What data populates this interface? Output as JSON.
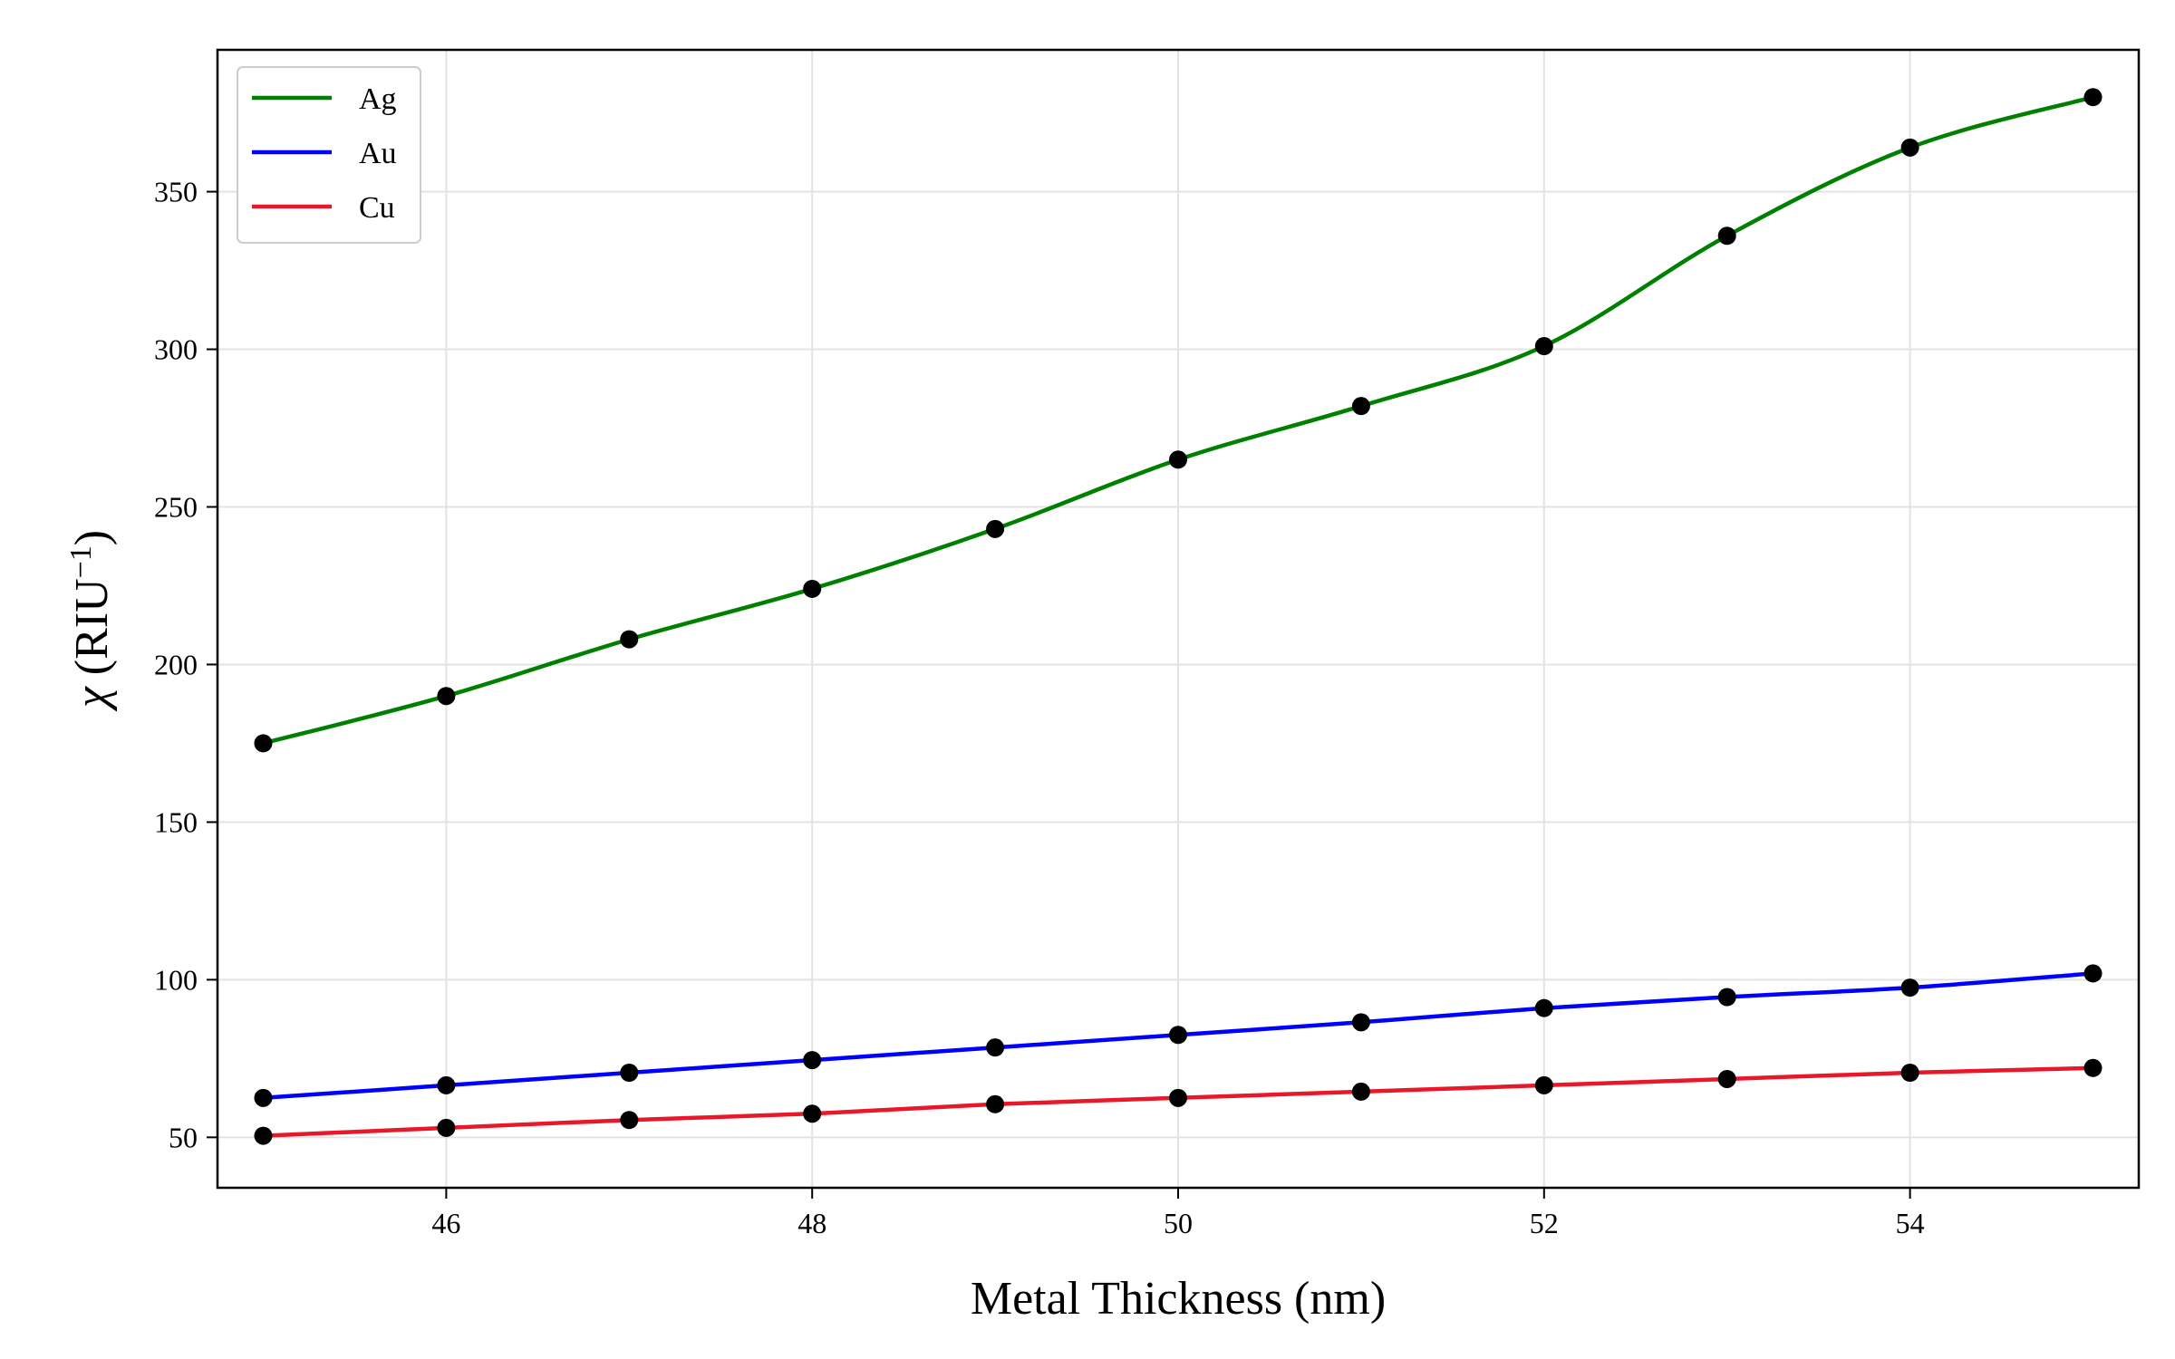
{
  "chart_data": {
    "type": "line",
    "xlabel": "Metal Thickness (nm)",
    "ylabel": {
      "symbol": "χ",
      "unit_prefix": " (RIU",
      "unit_sup": "−1",
      "unit_suffix": ")"
    },
    "xlim": [
      44.75,
      55.25
    ],
    "ylim": [
      34,
      395
    ],
    "x_ticks": [
      46,
      48,
      50,
      52,
      54
    ],
    "y_ticks": [
      50,
      100,
      150,
      200,
      250,
      300,
      350
    ],
    "grid": true,
    "legend_position": "top-left",
    "marker_color": "#000000",
    "x": [
      45,
      46,
      47,
      48,
      49,
      50,
      51,
      52,
      53,
      54,
      55
    ],
    "series": [
      {
        "name": "Ag",
        "color": "#008000",
        "values": [
          175,
          190,
          208,
          224,
          243,
          265,
          282,
          301,
          336,
          364,
          380
        ]
      },
      {
        "name": "Au",
        "color": "#0000ff",
        "values": [
          62.5,
          66.5,
          70.5,
          74.5,
          78.5,
          82.5,
          86.5,
          91,
          94.5,
          97.5,
          102
        ]
      },
      {
        "name": "Cu",
        "color": "#e8182a",
        "values": [
          50.5,
          53,
          55.5,
          57.5,
          60.5,
          62.5,
          64.5,
          66.5,
          68.5,
          70.5,
          72
        ]
      }
    ]
  }
}
